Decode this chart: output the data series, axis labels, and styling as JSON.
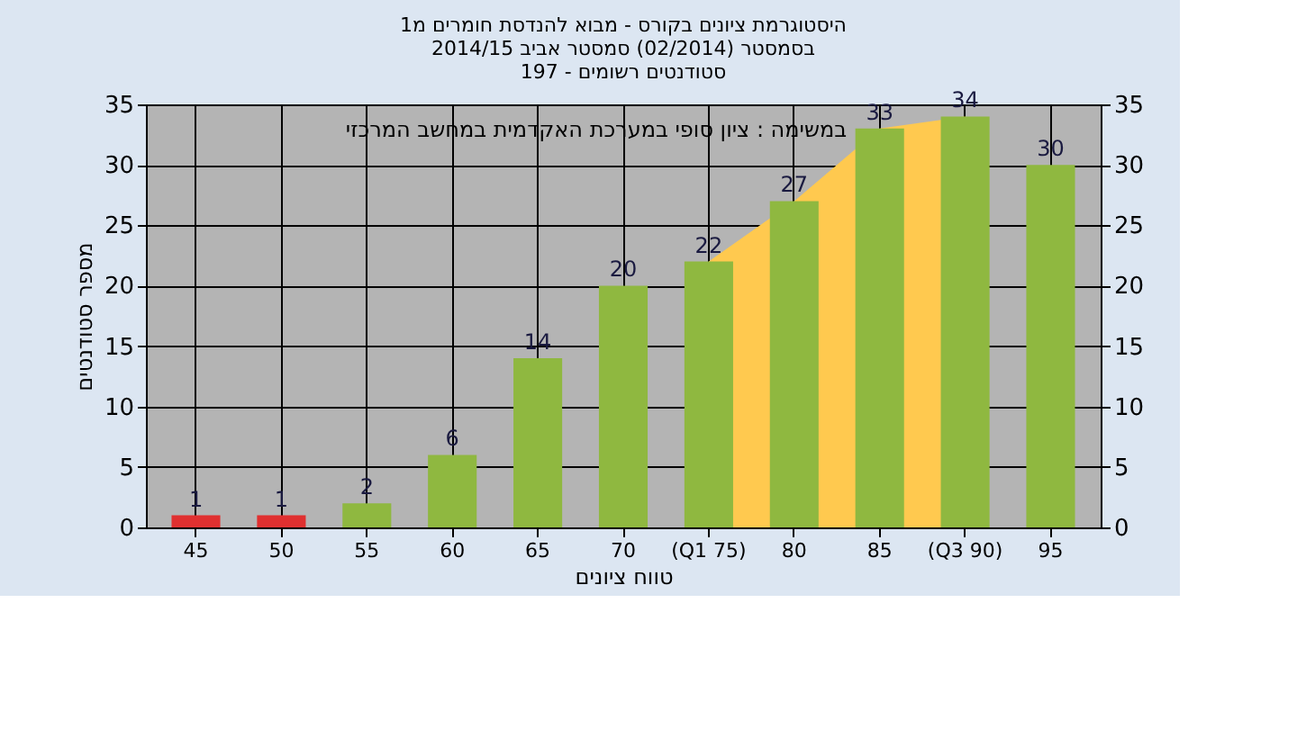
{
  "chart_data": {
    "type": "bar",
    "title": [
      "היסטוגרמת ציונים בקורס - מבוא להנדסת חומרים מ1",
      "בסמסטר  (02/2014)  סמסטר אביב 2014/15",
      "סטודנטים רשומים - 197"
    ],
    "xlabel": "טווח ציונים",
    "ylabel": "מספר סטודנטים",
    "annotations": [
      "במשימה : ציון סופי במערכת האקדמית במחשב המרכזי"
    ],
    "categories": [
      "45",
      "50",
      "55",
      "60",
      "65",
      "70",
      "(Q1 75)",
      "80",
      "85",
      "(Q3 90)",
      "95"
    ],
    "series": [
      {
        "colors": [
          "#e03030",
          "#e03030",
          "#8fb840",
          "#8fb840",
          "#8fb840",
          "#8fb840",
          "#8fb840",
          "#8fb840",
          "#8fb840",
          "#8fb840",
          "#8fb840"
        ],
        "values": [
          1,
          1,
          2,
          6,
          14,
          20,
          22,
          27,
          33,
          34,
          30
        ],
        "value_labels": [
          "1",
          "1",
          "2",
          "6",
          "14",
          "20",
          "22",
          "27",
          "33",
          "34",
          "30"
        ]
      },
      {
        "type": "area",
        "color": "#ffc94f",
        "values": [
          null,
          null,
          null,
          null,
          null,
          null,
          22,
          27,
          33,
          34,
          null
        ]
      }
    ],
    "ylim": [
      0,
      35
    ],
    "yticks": [
      0,
      5,
      10,
      15,
      20,
      25,
      30,
      35
    ],
    "y2lim": [
      0,
      35
    ],
    "y2ticks": [
      0,
      5,
      10,
      15,
      20,
      25,
      30,
      35
    ],
    "grid": true
  }
}
